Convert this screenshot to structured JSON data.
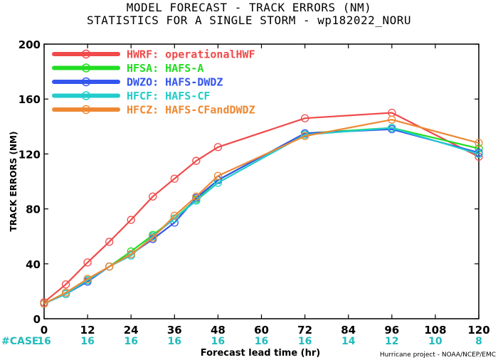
{
  "title": {
    "line1": "MODEL FORECAST - TRACK ERRORS (NM)",
    "line2": "STATISTICS FOR A SINGLE STORM - wp182022_NORU"
  },
  "credit": "Hurricane project - NOAA/NCEP/EMC",
  "case_label": "#CASE",
  "chart_data": {
    "type": "line",
    "xlabel": "Forecast lead time (hr)",
    "ylabel": "TRACK ERRORS (NM)",
    "xlim": [
      0,
      120
    ],
    "ylim": [
      0,
      200
    ],
    "xticks": [
      0,
      12,
      24,
      36,
      48,
      60,
      72,
      84,
      96,
      108,
      120
    ],
    "yticks": [
      0,
      40,
      80,
      120,
      160,
      200
    ],
    "case_counts": [
      {
        "x": 0,
        "n": "16"
      },
      {
        "x": 12,
        "n": "16"
      },
      {
        "x": 24,
        "n": "16"
      },
      {
        "x": 36,
        "n": "16"
      },
      {
        "x": 48,
        "n": "16"
      },
      {
        "x": 60,
        "n": "16"
      },
      {
        "x": 72,
        "n": "16"
      },
      {
        "x": 84,
        "n": "14"
      },
      {
        "x": 96,
        "n": "12"
      },
      {
        "x": 108,
        "n": "10"
      },
      {
        "x": 120,
        "n": "8"
      }
    ],
    "legend_position": "top-left",
    "grid": false,
    "series": [
      {
        "name": "HWRF: operationalHWF",
        "color": "#f04a4a",
        "x": [
          0,
          6,
          12,
          18,
          24,
          30,
          36,
          42,
          48,
          72,
          96,
          120
        ],
        "y": [
          12,
          25,
          41,
          56,
          72,
          89,
          102,
          115,
          125,
          146,
          150,
          118
        ]
      },
      {
        "name": "HFSA: HAFS-A",
        "color": "#22dd22",
        "x": [
          0,
          6,
          12,
          18,
          24,
          30,
          36,
          42,
          48,
          72,
          96,
          120
        ],
        "y": [
          11,
          19,
          28,
          38,
          49,
          61,
          73,
          87,
          101,
          135,
          139,
          124
        ]
      },
      {
        "name": "DWZO: HAFS-DWDZ",
        "color": "#3355ee",
        "x": [
          0,
          6,
          12,
          18,
          24,
          30,
          36,
          42,
          48,
          72,
          96,
          120
        ],
        "y": [
          11,
          18,
          27,
          38,
          47,
          58,
          70,
          88,
          101,
          135,
          138,
          121
        ]
      },
      {
        "name": "HFCF: HAFS-CF",
        "color": "#22cccc",
        "x": [
          0,
          6,
          12,
          18,
          24,
          30,
          36,
          42,
          48,
          72,
          96,
          120
        ],
        "y": [
          11,
          18,
          28,
          38,
          46,
          60,
          73,
          86,
          99,
          134,
          139,
          120
        ]
      },
      {
        "name": "HFCZ: HAFS-CFandDWDZ",
        "color": "#ee8833",
        "x": [
          0,
          6,
          12,
          18,
          24,
          30,
          36,
          42,
          48,
          72,
          96,
          120
        ],
        "y": [
          11,
          19,
          29,
          38,
          47,
          59,
          75,
          89,
          104,
          133,
          145,
          128
        ]
      }
    ]
  }
}
